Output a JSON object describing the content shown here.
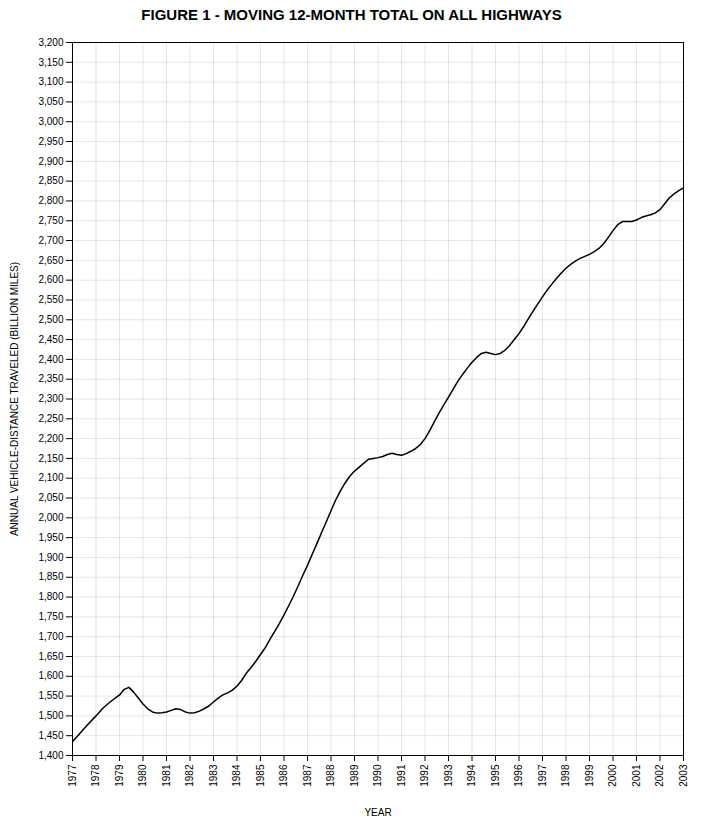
{
  "chart_data": {
    "type": "line",
    "title": "FIGURE 1 - MOVING 12-MONTH TOTAL ON ALL HIGHWAYS",
    "xlabel": "YEAR",
    "ylabel": "ANNUAL VEHICLE-DISTANCE TRAVELED (BILLION MILES)",
    "xlim": [
      1977,
      2003
    ],
    "ylim": [
      1400,
      3200
    ],
    "xticks": [
      1977,
      1978,
      1979,
      1980,
      1981,
      1982,
      1983,
      1984,
      1985,
      1986,
      1987,
      1988,
      1989,
      1990,
      1991,
      1992,
      1993,
      1994,
      1995,
      1996,
      1997,
      1998,
      1999,
      2000,
      2001,
      2002,
      2003
    ],
    "yticks": [
      {
        "value": 1400,
        "label": "1,400"
      },
      {
        "value": 1450,
        "label": "1,450"
      },
      {
        "value": 1500,
        "label": "1,500"
      },
      {
        "value": 1550,
        "label": "1,550"
      },
      {
        "value": 1600,
        "label": "1,600"
      },
      {
        "value": 1650,
        "label": "1,650"
      },
      {
        "value": 1700,
        "label": "1,700"
      },
      {
        "value": 1750,
        "label": "1,750"
      },
      {
        "value": 1800,
        "label": "1,800"
      },
      {
        "value": 1850,
        "label": "1,850"
      },
      {
        "value": 1900,
        "label": "1,900"
      },
      {
        "value": 1950,
        "label": "1,950"
      },
      {
        "value": 2000,
        "label": "2,000"
      },
      {
        "value": 2050,
        "label": "2,050"
      },
      {
        "value": 2100,
        "label": "2,100"
      },
      {
        "value": 2150,
        "label": "2,150"
      },
      {
        "value": 2200,
        "label": "2,200"
      },
      {
        "value": 2250,
        "label": "2,250"
      },
      {
        "value": 2300,
        "label": "2,300"
      },
      {
        "value": 2350,
        "label": "2,350"
      },
      {
        "value": 2400,
        "label": "2,400"
      },
      {
        "value": 2450,
        "label": "2,450"
      },
      {
        "value": 2500,
        "label": "2,500"
      },
      {
        "value": 2550,
        "label": "2,550"
      },
      {
        "value": 2600,
        "label": "2,600"
      },
      {
        "value": 2650,
        "label": "2,650"
      },
      {
        "value": 2700,
        "label": "2,700"
      },
      {
        "value": 2750,
        "label": "2,750"
      },
      {
        "value": 2800,
        "label": "2,800"
      },
      {
        "value": 2850,
        "label": "2,850"
      },
      {
        "value": 2900,
        "label": "2,900"
      },
      {
        "value": 2950,
        "label": "2,950"
      },
      {
        "value": 3000,
        "label": "3,000"
      },
      {
        "value": 3050,
        "label": "3,050"
      },
      {
        "value": 3100,
        "label": "3,100"
      },
      {
        "value": 3150,
        "label": "3,150"
      },
      {
        "value": 3200,
        "label": "3,200"
      }
    ],
    "grid": true,
    "color": "#000000",
    "x": [
      1977,
      1977.3,
      1977.6,
      1978,
      1978.3,
      1978.6,
      1979,
      1979.2,
      1979.4,
      1979.6,
      1979.8,
      1980,
      1980.2,
      1980.4,
      1980.6,
      1980.8,
      1981,
      1981.2,
      1981.4,
      1981.6,
      1981.8,
      1982,
      1982.2,
      1982.4,
      1982.6,
      1982.8,
      1983,
      1983.2,
      1983.4,
      1983.6,
      1983.8,
      1984,
      1984.2,
      1984.4,
      1984.6,
      1984.8,
      1985,
      1985.2,
      1985.4,
      1985.6,
      1985.8,
      1986,
      1986.2,
      1986.4,
      1986.6,
      1986.8,
      1987,
      1987.2,
      1987.4,
      1987.6,
      1987.8,
      1988,
      1988.2,
      1988.4,
      1988.6,
      1988.8,
      1989,
      1989.2,
      1989.4,
      1989.6,
      1989.8,
      1990,
      1990.2,
      1990.4,
      1990.6,
      1990.8,
      1991,
      1991.2,
      1991.4,
      1991.6,
      1991.8,
      1992,
      1992.2,
      1992.4,
      1992.6,
      1992.8,
      1993,
      1993.2,
      1993.4,
      1993.6,
      1993.8,
      1994,
      1994.2,
      1994.4,
      1994.6,
      1994.8,
      1995,
      1995.2,
      1995.4,
      1995.6,
      1995.8,
      1996,
      1996.2,
      1996.4,
      1996.6,
      1996.8,
      1997,
      1997.2,
      1997.4,
      1997.6,
      1997.8,
      1998,
      1998.2,
      1998.4,
      1998.6,
      1998.8,
      1999,
      1999.2,
      1999.4,
      1999.6,
      1999.8,
      2000,
      2000.2,
      2000.4,
      2000.6,
      2000.8,
      2001,
      2001.2,
      2001.4,
      2001.6,
      2001.8,
      2002,
      2002.2,
      2002.4,
      2002.6,
      2002.8,
      2003
    ],
    "values": [
      1435,
      1455,
      1475,
      1500,
      1520,
      1535,
      1553,
      1567,
      1572,
      1560,
      1545,
      1530,
      1518,
      1510,
      1507,
      1508,
      1510,
      1514,
      1518,
      1516,
      1510,
      1507,
      1508,
      1512,
      1518,
      1525,
      1535,
      1545,
      1553,
      1558,
      1565,
      1575,
      1590,
      1608,
      1622,
      1638,
      1655,
      1672,
      1693,
      1713,
      1733,
      1755,
      1778,
      1802,
      1828,
      1855,
      1880,
      1908,
      1935,
      1963,
      1990,
      2018,
      2045,
      2068,
      2088,
      2105,
      2118,
      2128,
      2138,
      2148,
      2150,
      2152,
      2155,
      2160,
      2163,
      2160,
      2158,
      2162,
      2168,
      2175,
      2185,
      2200,
      2220,
      2243,
      2265,
      2285,
      2305,
      2325,
      2345,
      2362,
      2378,
      2393,
      2405,
      2415,
      2418,
      2415,
      2412,
      2415,
      2423,
      2435,
      2450,
      2465,
      2483,
      2503,
      2522,
      2540,
      2558,
      2575,
      2590,
      2605,
      2618,
      2630,
      2640,
      2648,
      2655,
      2660,
      2665,
      2672,
      2680,
      2692,
      2708,
      2725,
      2740,
      2748,
      2748,
      2748,
      2752,
      2758,
      2762,
      2765,
      2770,
      2778,
      2793,
      2808,
      2818,
      2826,
      2833
    ]
  }
}
